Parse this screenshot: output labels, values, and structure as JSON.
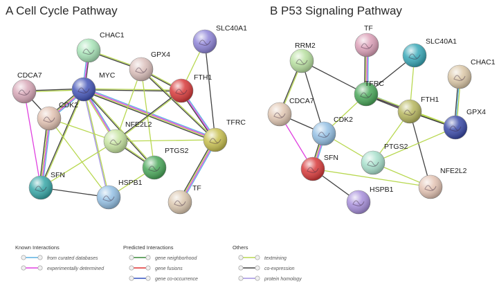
{
  "panels": [
    {
      "title": "A Cell Cycle Pathway",
      "nodes": [
        {
          "id": "CHAC1",
          "label": "CHAC1",
          "color": "#a8e4b8"
        },
        {
          "id": "SLC40A1",
          "label": "SLC40A1",
          "color": "#8f85d8"
        },
        {
          "id": "GPX4",
          "label": "GPX4",
          "color": "#dcc0bc"
        },
        {
          "id": "CDCA7",
          "label": "CDCA7",
          "color": "#d8a8b8"
        },
        {
          "id": "MYC",
          "label": "MYC",
          "color": "#4455b8"
        },
        {
          "id": "FTH1",
          "label": "FTH1",
          "color": "#d83a3a"
        },
        {
          "id": "CDK2",
          "label": "CDK2",
          "color": "#e2c2b2"
        },
        {
          "id": "NFE2L2",
          "label": "NFE2L2",
          "color": "#c6e4a0"
        },
        {
          "id": "TFRC",
          "label": "TFRC",
          "color": "#c8c050"
        },
        {
          "id": "PTGS2",
          "label": "PTGS2",
          "color": "#4aa85a"
        },
        {
          "id": "SFN",
          "label": "SFN",
          "color": "#38a8a8"
        },
        {
          "id": "HSPB1",
          "label": "HSPB1",
          "color": "#94c0e4"
        },
        {
          "id": "TF",
          "label": "TF",
          "color": "#dcc8b0"
        }
      ],
      "edges": [
        {
          "a": "MYC",
          "b": "CHAC1",
          "types": [
            "#5ab0e0",
            "#e040e0",
            "#404040"
          ]
        },
        {
          "a": "CHAC1",
          "b": "GPX4",
          "types": [
            "#b8d850",
            "#404040"
          ]
        },
        {
          "a": "MYC",
          "b": "CDCA7",
          "types": [
            "#b8d850",
            "#404040"
          ]
        },
        {
          "a": "MYC",
          "b": "CDK2",
          "types": [
            "#5ab0e0",
            "#e040e0",
            "#b8d850",
            "#404040"
          ]
        },
        {
          "a": "MYC",
          "b": "SFN",
          "types": [
            "#b8d850",
            "#404040"
          ]
        },
        {
          "a": "MYC",
          "b": "HSPB1",
          "types": [
            "#b8d850",
            "#a090e0"
          ]
        },
        {
          "a": "MYC",
          "b": "NFE2L2",
          "types": [
            "#5ab0e0",
            "#e040e0",
            "#b8d850"
          ]
        },
        {
          "a": "MYC",
          "b": "PTGS2",
          "types": [
            "#b8d850",
            "#404040"
          ]
        },
        {
          "a": "MYC",
          "b": "TFRC",
          "types": [
            "#5ab0e0",
            "#e040e0",
            "#b8d850",
            "#404040"
          ]
        },
        {
          "a": "MYC",
          "b": "FTH1",
          "types": [
            "#b8d850",
            "#404040"
          ]
        },
        {
          "a": "CDCA7",
          "b": "CDK2",
          "types": [
            "#404040"
          ]
        },
        {
          "a": "CDCA7",
          "b": "SFN",
          "types": [
            "#e040e0"
          ]
        },
        {
          "a": "CDK2",
          "b": "SFN",
          "types": [
            "#5ab0e0",
            "#e040e0",
            "#b8d850",
            "#404040"
          ]
        },
        {
          "a": "CDK2",
          "b": "HSPB1",
          "types": [
            "#b8d850"
          ]
        },
        {
          "a": "CDK2",
          "b": "NFE2L2",
          "types": [
            "#b8d850"
          ]
        },
        {
          "a": "SFN",
          "b": "HSPB1",
          "types": [
            "#404040"
          ]
        },
        {
          "a": "SFN",
          "b": "NFE2L2",
          "types": [
            "#b8d850"
          ]
        },
        {
          "a": "GPX4",
          "b": "FTH1",
          "types": [
            "#b8d850",
            "#404040"
          ]
        },
        {
          "a": "GPX4",
          "b": "NFE2L2",
          "types": [
            "#b8d850"
          ]
        },
        {
          "a": "GPX4",
          "b": "PTGS2",
          "types": [
            "#b8d850"
          ]
        },
        {
          "a": "GPX4",
          "b": "TFRC",
          "types": [
            "#b8d850",
            "#404040"
          ]
        },
        {
          "a": "SLC40A1",
          "b": "FTH1",
          "types": [
            "#b8d850"
          ]
        },
        {
          "a": "SLC40A1",
          "b": "TFRC",
          "types": [
            "#404040"
          ]
        },
        {
          "a": "FTH1",
          "b": "NFE2L2",
          "types": [
            "#b8d850",
            "#404040"
          ]
        },
        {
          "a": "FTH1",
          "b": "TFRC",
          "types": [
            "#5ab0e0",
            "#e040e0",
            "#404040"
          ]
        },
        {
          "a": "NFE2L2",
          "b": "PTGS2",
          "types": [
            "#b8d850",
            "#404040"
          ]
        },
        {
          "a": "NFE2L2",
          "b": "TFRC",
          "types": [
            "#b8d850"
          ]
        },
        {
          "a": "TFRC",
          "b": "TF",
          "types": [
            "#5ab0e0",
            "#e040e0",
            "#b8d850",
            "#404040"
          ]
        },
        {
          "a": "PTGS2",
          "b": "HSPB1",
          "types": [
            "#b8d850"
          ]
        }
      ]
    },
    {
      "title": "B P53 Signaling Pathway",
      "nodes": [
        {
          "id": "RRM2",
          "label": "RRM2",
          "color": "#b8e0a0"
        },
        {
          "id": "TF",
          "label": "TF",
          "color": "#dca0b8"
        },
        {
          "id": "SLC40A1",
          "label": "SLC40A1",
          "color": "#38a8b8"
        },
        {
          "id": "CHAC1",
          "label": "CHAC1",
          "color": "#dcc8a8"
        },
        {
          "id": "TFRC",
          "label": "TFRC",
          "color": "#4aa85a"
        },
        {
          "id": "CDCA7",
          "label": "CDCA7",
          "color": "#e2c8b4"
        },
        {
          "id": "FTH1",
          "label": "FTH1",
          "color": "#b8b860"
        },
        {
          "id": "GPX4",
          "label": "GPX4",
          "color": "#3a4aa8"
        },
        {
          "id": "CDK2",
          "label": "CDK2",
          "color": "#94c0e4"
        },
        {
          "id": "PTGS2",
          "label": "PTGS2",
          "color": "#a8e0cc"
        },
        {
          "id": "SFN",
          "label": "SFN",
          "color": "#d83a3a"
        },
        {
          "id": "NFE2L2",
          "label": "NFE2L2",
          "color": "#e4c4b4"
        },
        {
          "id": "HSPB1",
          "label": "HSPB1",
          "color": "#a890dc"
        }
      ],
      "edges": [
        {
          "a": "RRM2",
          "b": "TFRC",
          "types": [
            "#404040"
          ]
        },
        {
          "a": "RRM2",
          "b": "CDCA7",
          "types": [
            "#b8d850",
            "#404040"
          ]
        },
        {
          "a": "RRM2",
          "b": "CDK2",
          "types": [
            "#404040"
          ]
        },
        {
          "a": "TF",
          "b": "TFRC",
          "types": [
            "#5ab0e0",
            "#e040e0",
            "#b8d850",
            "#404040"
          ]
        },
        {
          "a": "SLC40A1",
          "b": "TFRC",
          "types": [
            "#404040"
          ]
        },
        {
          "a": "SLC40A1",
          "b": "FTH1",
          "types": [
            "#b8d850"
          ]
        },
        {
          "a": "TFRC",
          "b": "FTH1",
          "types": [
            "#5ab0e0",
            "#e040e0",
            "#404040"
          ]
        },
        {
          "a": "TFRC",
          "b": "GPX4",
          "types": [
            "#b8d850",
            "#404040"
          ]
        },
        {
          "a": "TFRC",
          "b": "CDK2",
          "types": [
            "#b8d850"
          ]
        },
        {
          "a": "CHAC1",
          "b": "GPX4",
          "types": [
            "#b8d850",
            "#5ab0e0",
            "#404040"
          ]
        },
        {
          "a": "FTH1",
          "b": "GPX4",
          "types": [
            "#b8d850",
            "#404040"
          ]
        },
        {
          "a": "FTH1",
          "b": "NFE2L2",
          "types": [
            "#404040"
          ]
        },
        {
          "a": "FTH1",
          "b": "PTGS2",
          "types": [
            "#b8d850"
          ]
        },
        {
          "a": "CDCA7",
          "b": "CDK2",
          "types": [
            "#404040"
          ]
        },
        {
          "a": "CDCA7",
          "b": "SFN",
          "types": [
            "#e040e0"
          ]
        },
        {
          "a": "CDK2",
          "b": "SFN",
          "types": [
            "#5ab0e0",
            "#e040e0",
            "#b8d850",
            "#404040"
          ]
        },
        {
          "a": "CDK2",
          "b": "PTGS2",
          "types": [
            "#b8d850"
          ]
        },
        {
          "a": "PTGS2",
          "b": "NFE2L2",
          "types": [
            "#b8d850"
          ]
        },
        {
          "a": "SFN",
          "b": "HSPB1",
          "types": [
            "#404040"
          ]
        },
        {
          "a": "SFN",
          "b": "NFE2L2",
          "types": [
            "#b8d850"
          ]
        },
        {
          "a": "GPX4",
          "b": "PTGS2",
          "types": [
            "#b8d850"
          ]
        }
      ]
    }
  ],
  "legend": {
    "groups": [
      {
        "heading": "Known Interactions",
        "items": [
          {
            "label": "from curated databases",
            "color": "#5ab0e0"
          },
          {
            "label": "experimentally determined",
            "color": "#e040e0"
          }
        ]
      },
      {
        "heading": "Predicted Interactions",
        "items": [
          {
            "label": "gene neighborhood",
            "color": "#3a8a3a"
          },
          {
            "label": "gene fusions",
            "color": "#e03030"
          },
          {
            "label": "gene co-occurrence",
            "color": "#3050c0"
          }
        ]
      },
      {
        "heading": "Others",
        "items": [
          {
            "label": "textmining",
            "color": "#b8d850"
          },
          {
            "label": "co-expression",
            "color": "#404040"
          },
          {
            "label": "protein homology",
            "color": "#a090e0"
          }
        ]
      }
    ]
  }
}
